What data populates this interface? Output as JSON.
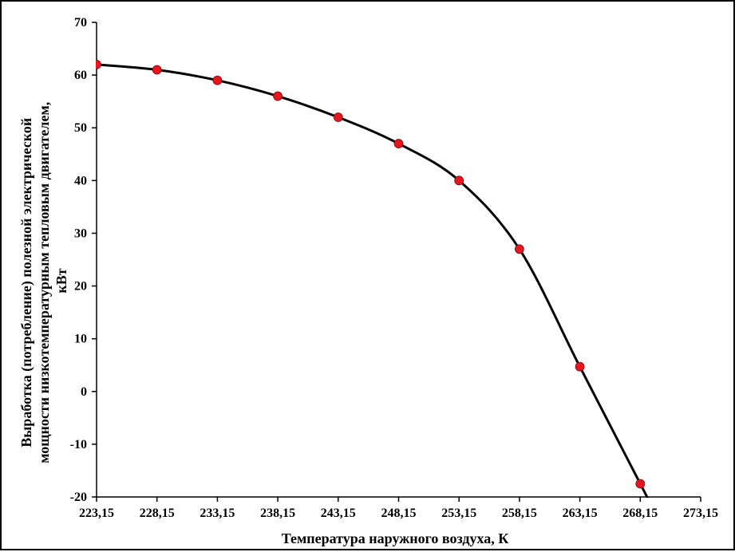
{
  "chart_data": {
    "type": "line",
    "xlabel": "Температура наружного воздуха, К",
    "ylabel_lines": [
      "Выработка (потребление) полезной электрической",
      "мощности низкотемпературным тепловым двигателем,",
      "кВт"
    ],
    "xlim": [
      223.15,
      273.15
    ],
    "ylim": [
      -20,
      70
    ],
    "x_ticks": [
      223.15,
      228.15,
      233.15,
      238.15,
      243.15,
      248.15,
      253.15,
      258.15,
      263.15,
      268.15,
      273.15
    ],
    "x_tick_labels": [
      "223,15",
      "228,15",
      "233,15",
      "238,15",
      "243,15",
      "248,15",
      "253,15",
      "258,15",
      "263,15",
      "268,15",
      "273,15"
    ],
    "y_ticks": [
      -20,
      -10,
      0,
      10,
      20,
      30,
      40,
      50,
      60,
      70
    ],
    "y_tick_labels": [
      "-20",
      "-10",
      "0",
      "10",
      "20",
      "30",
      "40",
      "50",
      "60",
      "70"
    ],
    "grid": false,
    "legend": "none",
    "series": [
      {
        "x": [
          223.15,
          228.15,
          233.15,
          238.15,
          243.15,
          248.15,
          253.15,
          258.15,
          263.15,
          268.15
        ],
        "y": [
          62,
          61,
          59,
          56,
          52,
          47,
          40,
          27,
          4.7,
          -17.5
        ],
        "line_color": "#000000",
        "marker_color": "#e8141e"
      }
    ]
  }
}
